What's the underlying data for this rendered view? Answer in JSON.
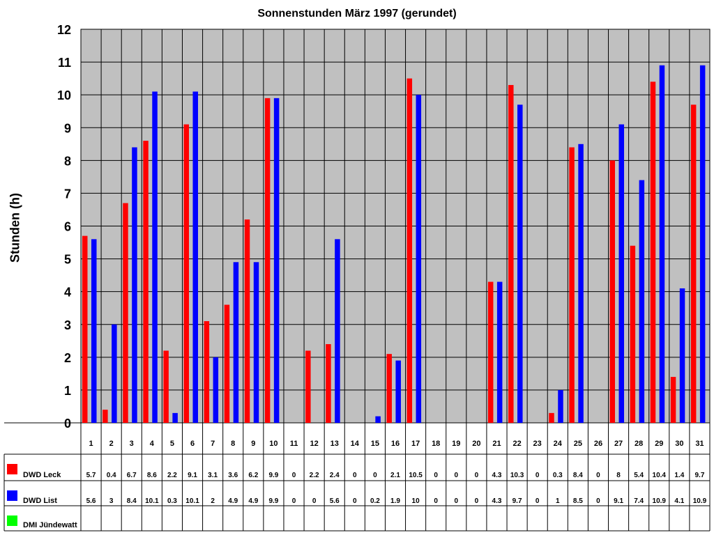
{
  "chart_data": {
    "type": "bar",
    "title": "Sonnenstunden März 1997 (gerundet)",
    "ylabel": "Stunden (h)",
    "xlabel": "",
    "ylim": [
      0,
      12
    ],
    "yticks": [
      0,
      1,
      2,
      3,
      4,
      5,
      6,
      7,
      8,
      9,
      10,
      11,
      12
    ],
    "grid": true,
    "legend": "data-table-left",
    "categories": [
      "1",
      "2",
      "3",
      "4",
      "5",
      "6",
      "7",
      "8",
      "9",
      "10",
      "11",
      "12",
      "13",
      "14",
      "15",
      "16",
      "17",
      "18",
      "19",
      "20",
      "21",
      "22",
      "23",
      "24",
      "25",
      "26",
      "27",
      "28",
      "29",
      "30",
      "31"
    ],
    "series": [
      {
        "name": "DWD Leck",
        "color": "#ff0000",
        "values": [
          5.7,
          0.4,
          6.7,
          8.6,
          2.2,
          9.1,
          3.1,
          3.6,
          6.2,
          9.9,
          0,
          2.2,
          2.4,
          0,
          0,
          2.1,
          10.5,
          0,
          0,
          0,
          4.3,
          10.3,
          0,
          0.3,
          8.4,
          0,
          8,
          5.4,
          10.4,
          1.4,
          9.7
        ]
      },
      {
        "name": "DWD List",
        "color": "#0000ff",
        "values": [
          5.6,
          3,
          8.4,
          10.1,
          0.3,
          10.1,
          2,
          4.9,
          4.9,
          9.9,
          0,
          0,
          5.6,
          0,
          0.2,
          1.9,
          10,
          0,
          0,
          0,
          4.3,
          9.7,
          0,
          1,
          8.5,
          0,
          9.1,
          7.4,
          10.9,
          4.1,
          10.9
        ]
      },
      {
        "name": "DMI Jündewatt",
        "color": "#00ff00",
        "values": [
          null,
          null,
          null,
          null,
          null,
          null,
          null,
          null,
          null,
          null,
          null,
          null,
          null,
          null,
          null,
          null,
          null,
          null,
          null,
          null,
          null,
          null,
          null,
          null,
          null,
          null,
          null,
          null,
          null,
          null,
          null
        ]
      }
    ],
    "colors": {
      "plot_background": "#c0c0c0"
    }
  }
}
